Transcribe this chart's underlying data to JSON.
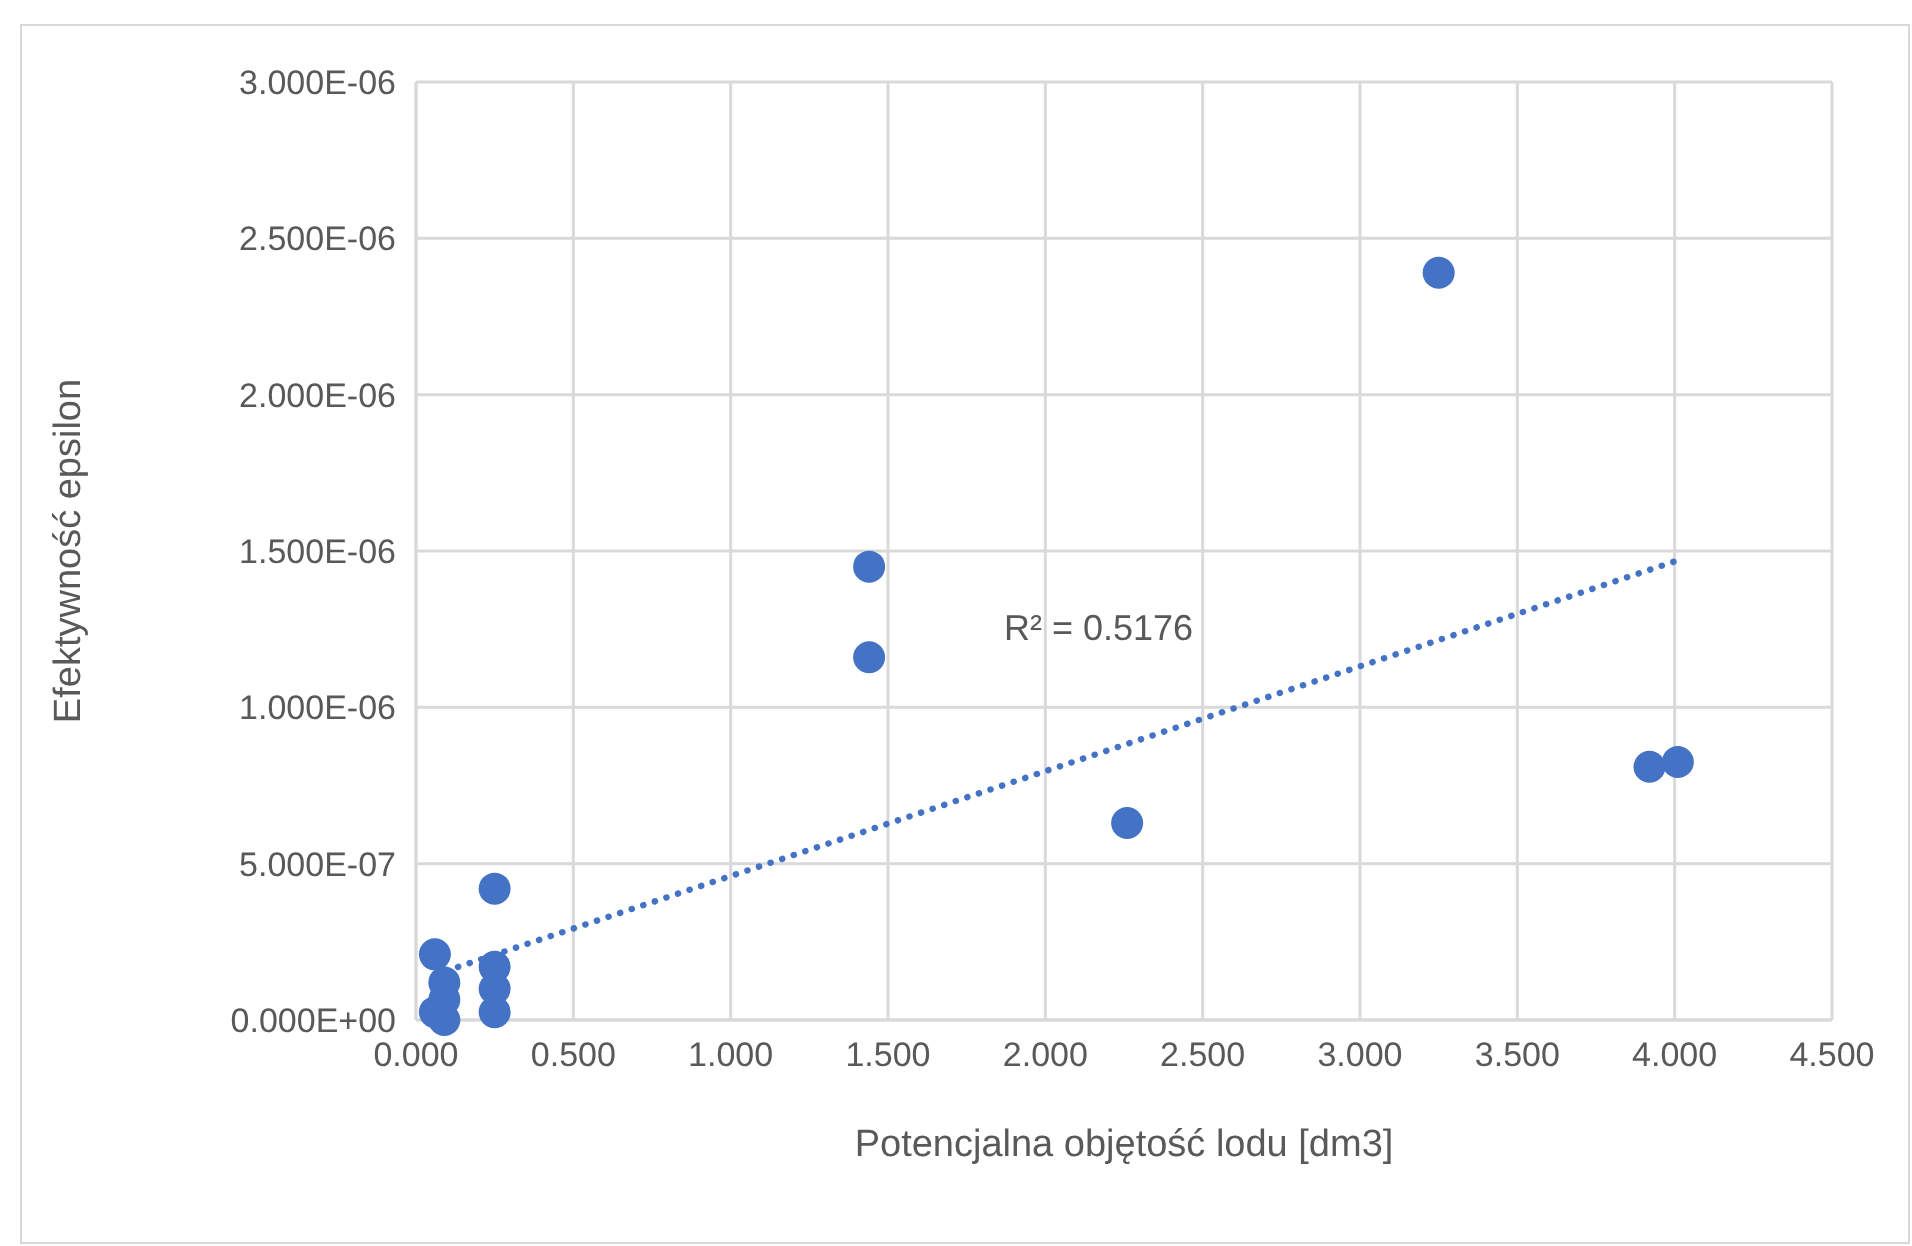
{
  "chart_data": {
    "type": "scatter",
    "xlabel": "Potencjalna objętość lodu [dm3]",
    "ylabel": "Efektywność epsilon",
    "series": [
      {
        "color": "#4472c4",
        "marker": "circle",
        "x": [
          0.06,
          0.06,
          0.09,
          0.09,
          0.09,
          0.25,
          0.25,
          0.25,
          0.25,
          1.44,
          1.44,
          2.26,
          3.25,
          3.92,
          4.01
        ],
        "values": [
          2.1e-07,
          2.5e-08,
          1.2e-07,
          6.5e-08,
          0,
          4.2e-07,
          1.7e-07,
          1e-07,
          2.5e-08,
          1.45e-06,
          1.16e-06,
          6.3e-07,
          2.39e-06,
          8.1e-07,
          8.25e-07
        ]
      },
      {
        "type": "line",
        "color": "#4472c4",
        "line_style": "dotted",
        "marker": "none",
        "x": [
          0.06,
          4.01
        ],
        "values": [
          1.45e-07,
          1.47e-06
        ]
      }
    ],
    "xlim": [
      0,
      4.5
    ],
    "xticks": [
      {
        "value": 0,
        "label": "0.000"
      },
      {
        "value": 0.5,
        "label": "0.500"
      },
      {
        "value": 1,
        "label": "1.000"
      },
      {
        "value": 1.5,
        "label": "1.500"
      },
      {
        "value": 2,
        "label": "2.000"
      },
      {
        "value": 2.5,
        "label": "2.500"
      },
      {
        "value": 3,
        "label": "3.000"
      },
      {
        "value": 3.5,
        "label": "3.500"
      },
      {
        "value": 4,
        "label": "4.000"
      },
      {
        "value": 4.5,
        "label": "4.500"
      }
    ],
    "ylim": [
      0,
      3e-06
    ],
    "yticks": [
      {
        "value": 0,
        "label": "0.000E+00"
      },
      {
        "value": 5e-07,
        "label": "5.000E-07"
      },
      {
        "value": 1e-06,
        "label": "1.000E-06"
      },
      {
        "value": 1.5e-06,
        "label": "1.500E-06"
      },
      {
        "value": 2e-06,
        "label": "2.000E-06"
      },
      {
        "value": 2.5e-06,
        "label": "2.500E-06"
      },
      {
        "value": 3e-06,
        "label": "3.000E-06"
      }
    ],
    "grid": true,
    "annotations": [
      "R² = 0.5176"
    ]
  }
}
